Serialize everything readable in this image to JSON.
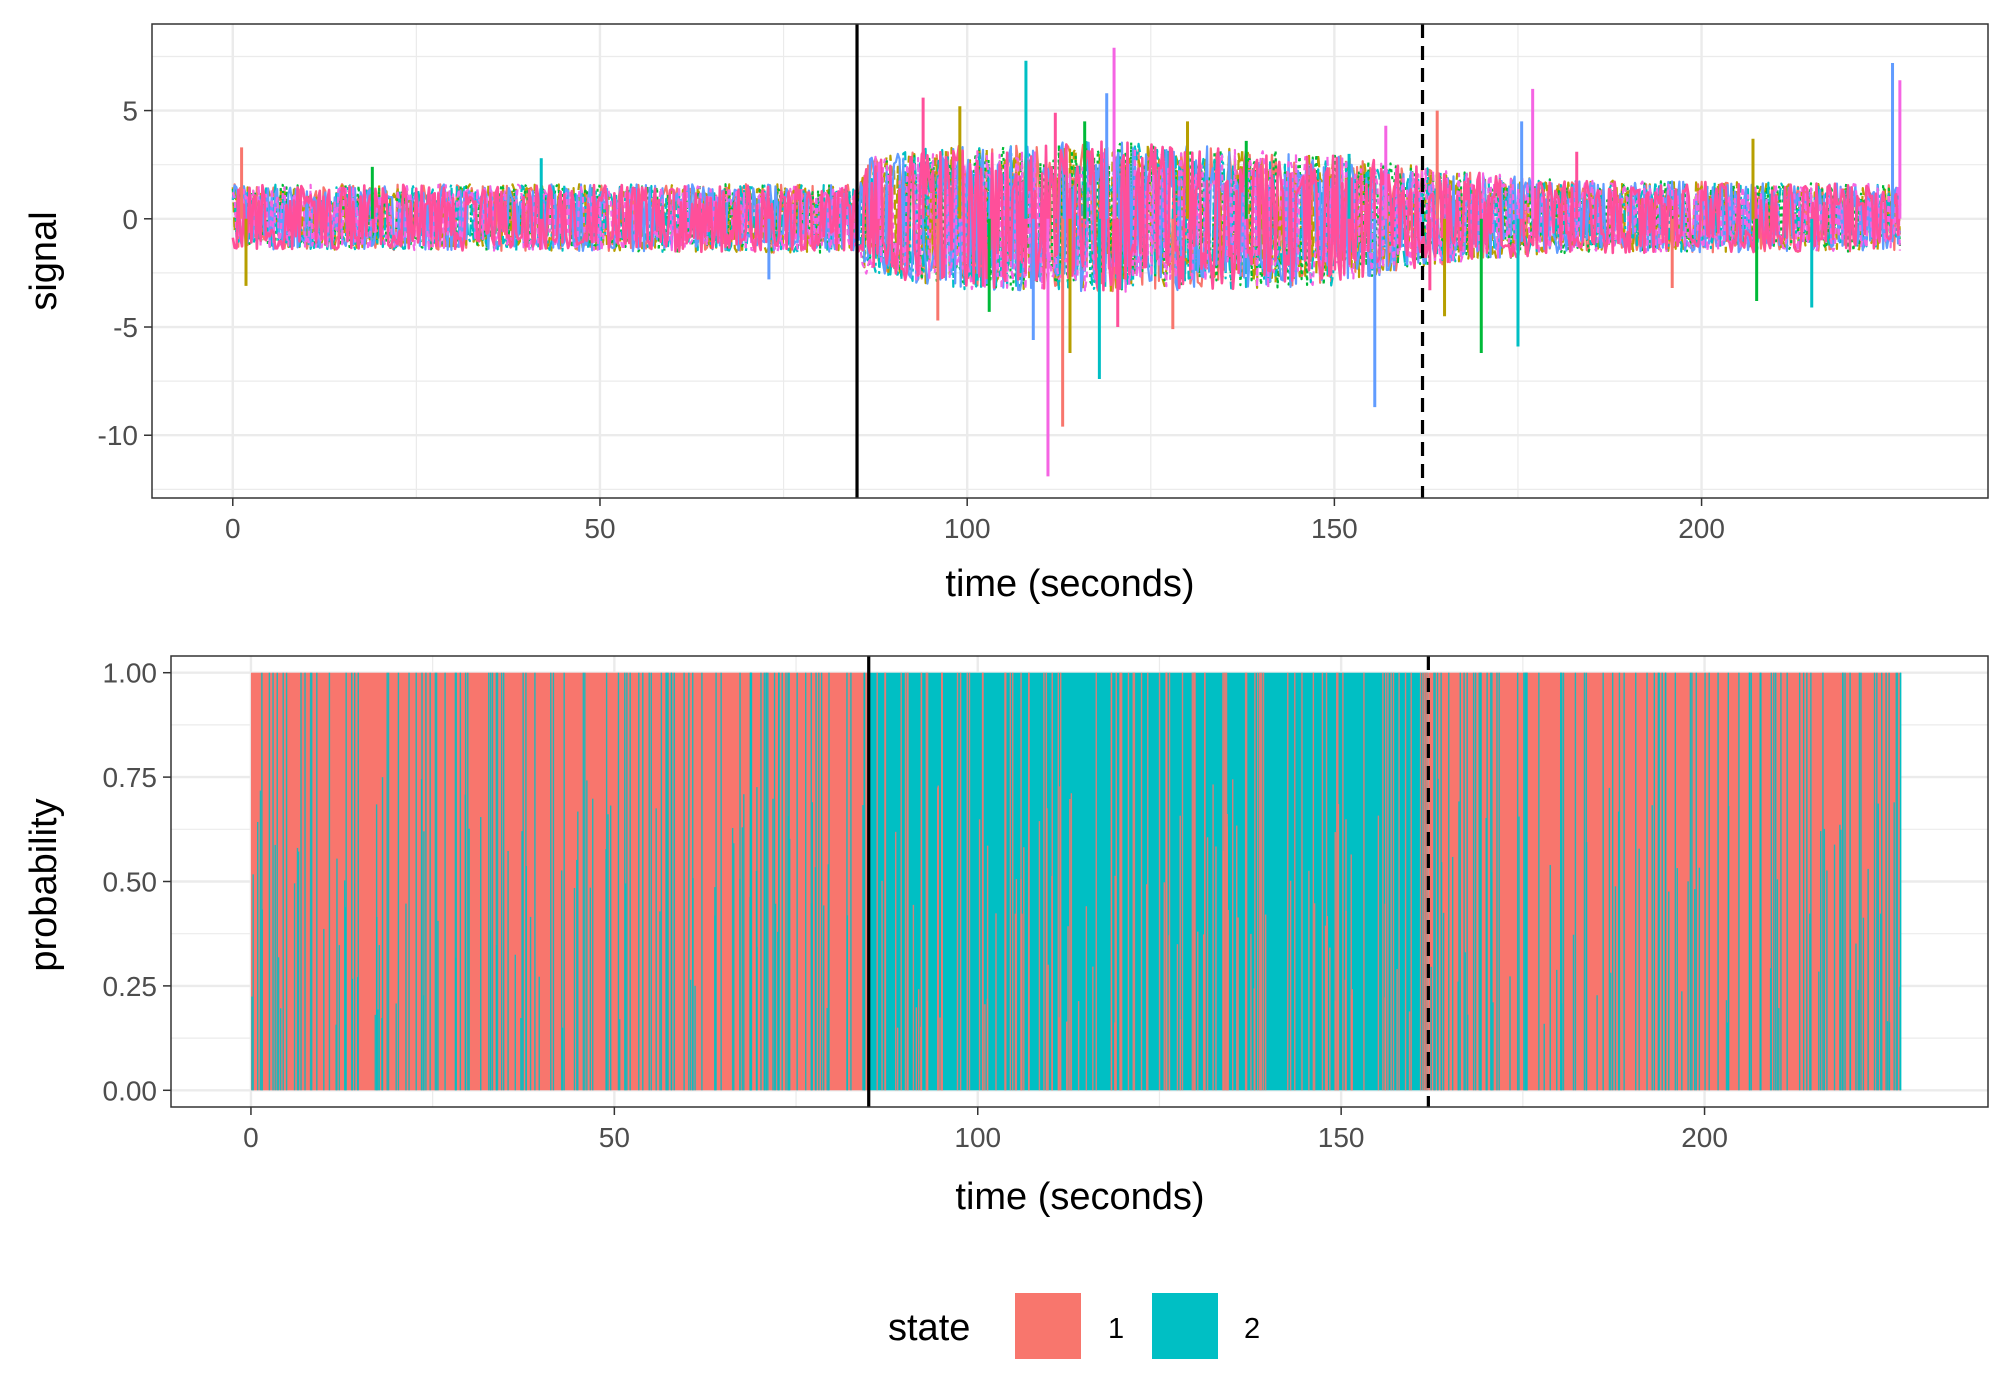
{
  "chart_data": [
    {
      "type": "line",
      "panel": "top",
      "xlabel": "time (seconds)",
      "ylabel": "signal",
      "xlim": [
        -11,
        239
      ],
      "ylim": [
        -12.9,
        9.0
      ],
      "xticks": [
        0,
        50,
        100,
        150,
        200
      ],
      "xtick_labels": [
        "0",
        "50",
        "100",
        "150",
        "200"
      ],
      "yticks": [
        5,
        0,
        -5,
        -10
      ],
      "ytick_labels": [
        "5",
        "0",
        "-5",
        "-10"
      ],
      "grid": true,
      "time_range": [
        0,
        227
      ],
      "series_colors": [
        "#F8766D",
        "#B79F00",
        "#00BA38",
        "#00BFC4",
        "#619CFF",
        "#F564E3",
        "#FF4F9A"
      ],
      "envelope": [
        {
          "t": 0,
          "upper": 1.6,
          "lower": -1.4
        },
        {
          "t": 85,
          "upper": 1.6,
          "lower": -1.6
        },
        {
          "t": 86,
          "upper": 3.0,
          "lower": -2.6
        },
        {
          "t": 100,
          "upper": 3.4,
          "lower": -3.3
        },
        {
          "t": 120,
          "upper": 3.6,
          "lower": -3.4
        },
        {
          "t": 150,
          "upper": 3.0,
          "lower": -3.1
        },
        {
          "t": 162,
          "upper": 2.4,
          "lower": -2.2
        },
        {
          "t": 180,
          "upper": 1.8,
          "lower": -1.6
        },
        {
          "t": 227,
          "upper": 1.6,
          "lower": -1.5
        }
      ],
      "spikes": [
        {
          "t": 1.2,
          "v": 3.3
        },
        {
          "t": 1.8,
          "v": -3.1
        },
        {
          "t": 19,
          "v": 2.4
        },
        {
          "t": 42,
          "v": 2.8
        },
        {
          "t": 73,
          "v": -2.8
        },
        {
          "t": 88,
          "v": 2.6
        },
        {
          "t": 94,
          "v": 5.6
        },
        {
          "t": 96,
          "v": -4.7
        },
        {
          "t": 99,
          "v": 5.2
        },
        {
          "t": 103,
          "v": -4.3
        },
        {
          "t": 108,
          "v": 7.3
        },
        {
          "t": 109,
          "v": -5.6
        },
        {
          "t": 111,
          "v": -11.9
        },
        {
          "t": 112,
          "v": 4.9
        },
        {
          "t": 113,
          "v": -9.6
        },
        {
          "t": 114,
          "v": -6.2
        },
        {
          "t": 116,
          "v": 4.5
        },
        {
          "t": 118,
          "v": -7.4
        },
        {
          "t": 119,
          "v": 5.8
        },
        {
          "t": 120,
          "v": 7.9
        },
        {
          "t": 120.5,
          "v": -5.0
        },
        {
          "t": 128,
          "v": -5.1
        },
        {
          "t": 130,
          "v": 4.5
        },
        {
          "t": 138,
          "v": 3.6
        },
        {
          "t": 152,
          "v": 3.0
        },
        {
          "t": 155.5,
          "v": -8.7
        },
        {
          "t": 157,
          "v": 4.3
        },
        {
          "t": 163,
          "v": -3.3
        },
        {
          "t": 164,
          "v": 5.0
        },
        {
          "t": 165,
          "v": -4.5
        },
        {
          "t": 170,
          "v": -6.2
        },
        {
          "t": 175,
          "v": -5.9
        },
        {
          "t": 175.5,
          "v": 4.5
        },
        {
          "t": 177,
          "v": 6.0
        },
        {
          "t": 183,
          "v": 3.1
        },
        {
          "t": 196,
          "v": -3.2
        },
        {
          "t": 207,
          "v": 3.7
        },
        {
          "t": 207.5,
          "v": -3.8
        },
        {
          "t": 215,
          "v": -4.1
        },
        {
          "t": 226,
          "v": 7.2
        },
        {
          "t": 227,
          "v": 6.4
        }
      ],
      "vlines": [
        {
          "x": 85,
          "style": "solid"
        },
        {
          "x": 162,
          "style": "dashed"
        }
      ]
    },
    {
      "type": "bar",
      "panel": "bottom",
      "xlabel": "time (seconds)",
      "ylabel": "probability",
      "xlim": [
        -11,
        239
      ],
      "ylim": [
        -0.04,
        1.04
      ],
      "xticks": [
        0,
        50,
        100,
        150,
        200
      ],
      "xtick_labels": [
        "0",
        "50",
        "100",
        "150",
        "200"
      ],
      "yticks": [
        1.0,
        0.75,
        0.5,
        0.25,
        0.0
      ],
      "ytick_labels": [
        "1.00",
        "0.75",
        "0.50",
        "0.25",
        "0.00"
      ],
      "grid": true,
      "stacked": true,
      "time_range": [
        0,
        227
      ],
      "segments": [
        {
          "from": 0,
          "to": 85,
          "dominant_state": "1"
        },
        {
          "from": 85,
          "to": 162,
          "dominant_state": "2"
        },
        {
          "from": 162,
          "to": 227,
          "dominant_state": "1"
        }
      ],
      "vlines": [
        {
          "x": 85,
          "style": "solid"
        },
        {
          "x": 162,
          "style": "dashed"
        }
      ]
    }
  ],
  "legend": {
    "title": "state",
    "position": "bottom",
    "items": [
      {
        "label": "1",
        "color": "#F8766D"
      },
      {
        "label": "2",
        "color": "#00BFC4"
      }
    ]
  },
  "colors": {
    "state_1": "#F8766D",
    "state_2": "#00BFC4",
    "grid": "#ebebeb",
    "frame": "#333333"
  }
}
